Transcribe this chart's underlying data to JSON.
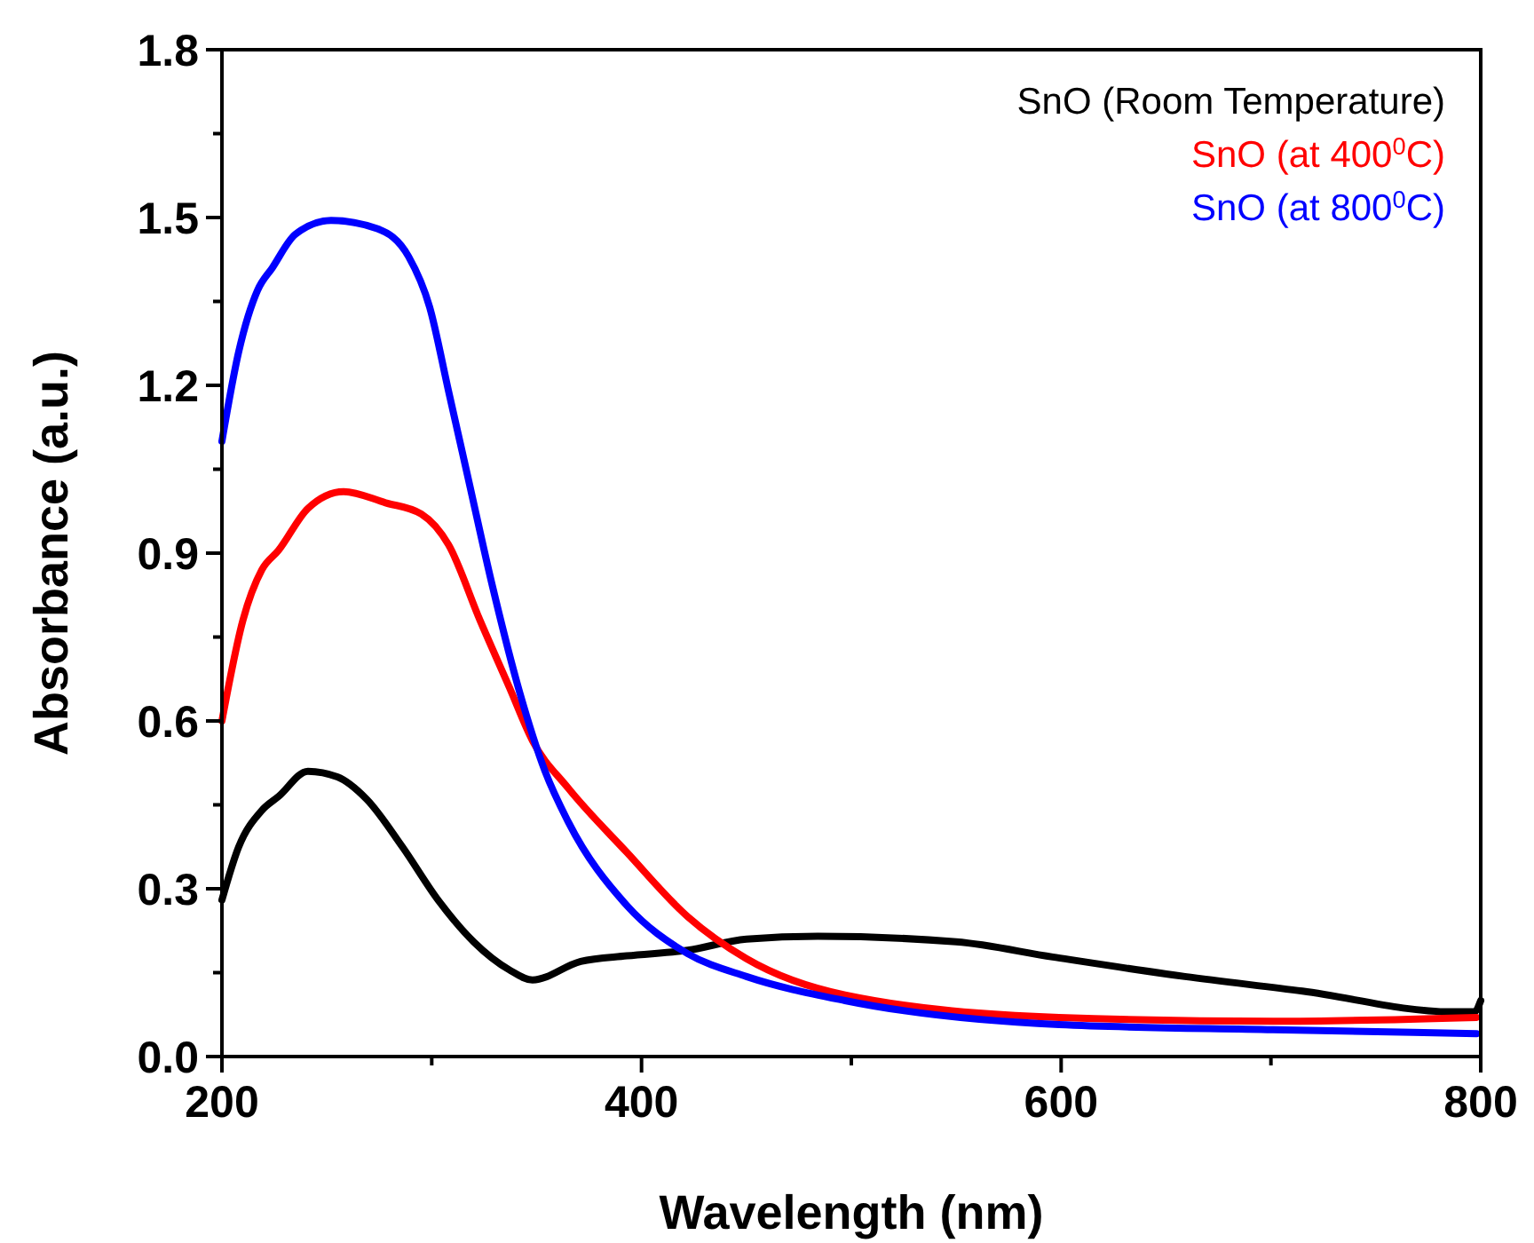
{
  "chart_data": {
    "type": "line",
    "xlabel": "Wavelength (nm)",
    "ylabel": "Absorbance (a.u.)",
    "xlim": [
      200,
      800
    ],
    "ylim": [
      0,
      1.8
    ],
    "xticks": [
      200,
      {
        "value": 300,
        "label": null
      },
      400,
      {
        "value": 500,
        "label": null
      },
      600,
      {
        "value": 700,
        "label": null
      },
      800
    ],
    "yticks": [
      {
        "value": 0,
        "label": "0.0"
      },
      {
        "value": 0.15,
        "label": null
      },
      0.3,
      {
        "value": 0.45,
        "label": null
      },
      0.6,
      {
        "value": 0.75,
        "label": null
      },
      0.9,
      {
        "value": 1.05,
        "label": null
      },
      1.2,
      {
        "value": 1.35,
        "label": null
      },
      1.5,
      {
        "value": 1.65,
        "label": null
      },
      1.8
    ],
    "legend": "top right",
    "grid": false,
    "marker": "none",
    "line_style": "solid",
    "series": [
      {
        "name": "SnO (Room Temperature)",
        "color": "#000000",
        "x": [
          200,
          208,
          219,
          227,
          241,
          255,
          269,
          286,
          303,
          320,
          337,
          348,
          371,
          393,
          422,
          450,
          484,
          550,
          596,
          659,
          715,
          786,
          797,
          800
        ],
        "values": [
          0.28,
          0.375,
          0.44,
          0.465,
          0.51,
          0.5,
          0.46,
          0.375,
          0.28,
          0.205,
          0.155,
          0.137,
          0.17,
          0.18,
          0.19,
          0.21,
          0.215,
          0.205,
          0.178,
          0.143,
          0.117,
          0.08,
          0.08,
          0.1
        ]
      },
      {
        "name": "SnO (at 400$^{0}$C)",
        "color": "#ff0000",
        "x": [
          200,
          210,
          219,
          227,
          241,
          258,
          278,
          295,
          308,
          323,
          337,
          348,
          365,
          393,
          422,
          450,
          497,
          599,
          701,
          798
        ],
        "values": [
          0.6,
          0.78,
          0.87,
          0.905,
          0.98,
          1.01,
          0.99,
          0.97,
          0.915,
          0.78,
          0.66,
          0.565,
          0.48,
          0.365,
          0.25,
          0.175,
          0.11,
          0.07,
          0.063,
          0.07
        ]
      },
      {
        "name": "SnO (at 800$^{0}$C)",
        "color": "#0000ff",
        "x": [
          200,
          208,
          217,
          224,
          235,
          252,
          274,
          289,
          299,
          308,
          317,
          329,
          342,
          354,
          365,
          393,
          422,
          450,
          497,
          599,
          701,
          798
        ],
        "values": [
          1.1,
          1.26,
          1.37,
          1.41,
          1.47,
          1.495,
          1.48,
          1.43,
          1.34,
          1.19,
          1.04,
          0.84,
          0.65,
          0.51,
          0.42,
          0.27,
          0.184,
          0.143,
          0.1,
          0.057,
          0.048,
          0.041
        ]
      }
    ]
  }
}
